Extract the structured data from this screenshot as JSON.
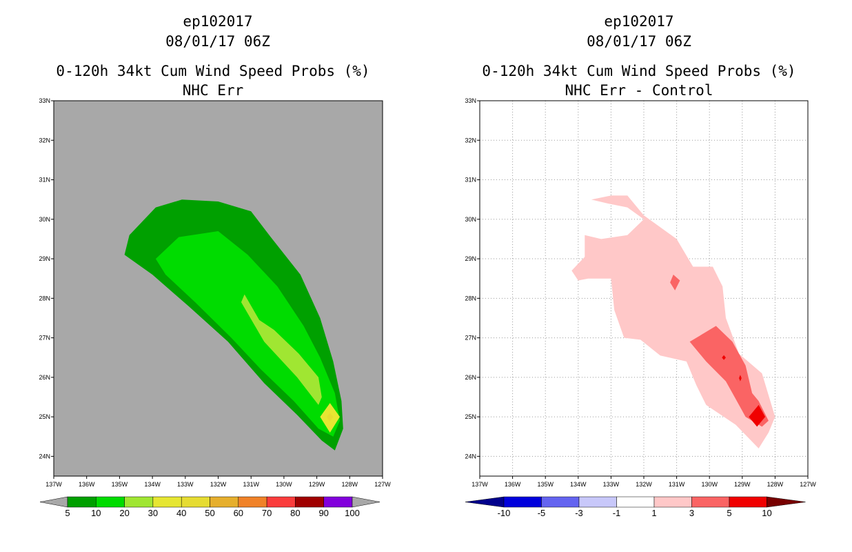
{
  "chart_data": [
    {
      "type": "heatmap",
      "id": "left",
      "storm_id": "ep102017",
      "datetime": "08/01/17 06Z",
      "title": "0-120h 34kt Cum Wind Speed Probs (%)",
      "subtitle": "NHC Err",
      "xlim": [
        -137,
        -127
      ],
      "ylim": [
        23.5,
        33
      ],
      "xticks": [
        "137W",
        "136W",
        "135W",
        "134W",
        "133W",
        "132W",
        "131W",
        "130W",
        "129W",
        "128W",
        "127W"
      ],
      "yticks": [
        "24N",
        "25N",
        "26N",
        "27N",
        "28N",
        "29N",
        "30N",
        "31N",
        "32N",
        "33N"
      ],
      "grid": false,
      "background": "#a8a8a8",
      "colorbar": {
        "labels": [
          "5",
          "10",
          "20",
          "30",
          "40",
          "50",
          "60",
          "70",
          "80",
          "90",
          "100"
        ],
        "colors": [
          "#00a000",
          "#00dc00",
          "#a0e632",
          "#e6e632",
          "#e6dc32",
          "#e6af2d",
          "#f08228",
          "#fa3c3c",
          "#a00000",
          "#8200dc"
        ],
        "end_left": "#a8a8a8",
        "end_right": "#a8a8a8"
      },
      "contours": [
        {
          "level": "5",
          "color": "#00a000",
          "points": [
            [
              -134.7,
              29.6
            ],
            [
              -133.9,
              30.3
            ],
            [
              -133.1,
              30.5
            ],
            [
              -132.0,
              30.45
            ],
            [
              -131.0,
              30.2
            ],
            [
              -130.4,
              29.55
            ],
            [
              -129.5,
              28.6
            ],
            [
              -128.9,
              27.5
            ],
            [
              -128.5,
              26.4
            ],
            [
              -128.25,
              25.4
            ],
            [
              -128.2,
              24.7
            ],
            [
              -128.45,
              24.15
            ],
            [
              -128.85,
              24.4
            ],
            [
              -129.6,
              25.05
            ],
            [
              -130.6,
              25.85
            ],
            [
              -131.7,
              26.9
            ],
            [
              -132.9,
              27.8
            ],
            [
              -134.0,
              28.6
            ],
            [
              -134.85,
              29.1
            ]
          ]
        },
        {
          "level": "10",
          "color": "#00dc00",
          "points": [
            [
              -133.9,
              29.0
            ],
            [
              -133.2,
              29.55
            ],
            [
              -132.0,
              29.7
            ],
            [
              -131.1,
              29.1
            ],
            [
              -130.2,
              28.3
            ],
            [
              -129.4,
              27.3
            ],
            [
              -128.9,
              26.5
            ],
            [
              -128.45,
              25.6
            ],
            [
              -128.3,
              24.9
            ],
            [
              -128.5,
              24.5
            ],
            [
              -128.95,
              24.7
            ],
            [
              -129.7,
              25.4
            ],
            [
              -130.7,
              26.2
            ],
            [
              -131.6,
              27.0
            ],
            [
              -132.7,
              27.9
            ],
            [
              -133.6,
              28.6
            ]
          ]
        },
        {
          "level": "20",
          "color": "#a0e632",
          "points": [
            [
              -131.2,
              28.1
            ],
            [
              -130.75,
              27.45
            ],
            [
              -130.3,
              27.2
            ],
            [
              -129.55,
              26.6
            ],
            [
              -128.95,
              26.0
            ],
            [
              -128.85,
              25.5
            ],
            [
              -128.95,
              25.3
            ],
            [
              -129.6,
              26.0
            ],
            [
              -130.6,
              26.9
            ],
            [
              -131.3,
              27.9
            ]
          ]
        },
        {
          "level": "30",
          "color": "#e6e632",
          "points": [
            [
              -128.6,
              25.35
            ],
            [
              -128.3,
              25.0
            ],
            [
              -128.6,
              24.6
            ],
            [
              -128.9,
              25.0
            ]
          ]
        },
        {
          "level": "40",
          "color": "#e6dc32",
          "points": [
            [
              -128.6,
              25.1
            ],
            [
              -128.5,
              25.0
            ],
            [
              -128.6,
              24.88
            ],
            [
              -128.7,
              25.0
            ]
          ]
        }
      ]
    },
    {
      "type": "heatmap",
      "id": "right",
      "storm_id": "ep102017",
      "datetime": "08/01/17 06Z",
      "title": "0-120h 34kt Cum Wind Speed Probs (%)",
      "subtitle": "NHC Err - Control",
      "xlim": [
        -137,
        -127
      ],
      "ylim": [
        23.5,
        33
      ],
      "xticks": [
        "137W",
        "136W",
        "135W",
        "134W",
        "133W",
        "132W",
        "131W",
        "130W",
        "129W",
        "128W",
        "127W"
      ],
      "yticks": [
        "24N",
        "25N",
        "26N",
        "27N",
        "28N",
        "29N",
        "30N",
        "31N",
        "32N",
        "33N"
      ],
      "grid": true,
      "background": "#ffffff",
      "colorbar": {
        "labels": [
          "-10",
          "-5",
          "-3",
          "-1",
          "1",
          "3",
          "5",
          "10"
        ],
        "colors": [
          "#0000dc",
          "#6464f0",
          "#c8c8fa",
          "#ffffff",
          "#ffc8c8",
          "#fa6464",
          "#f00000"
        ],
        "end_left": "#00008c",
        "end_right": "#780000"
      },
      "contours": [
        {
          "level": "1",
          "color": "#ffc8c8",
          "points": [
            [
              -133.6,
              30.5
            ],
            [
              -133.0,
              30.6
            ],
            [
              -132.5,
              30.6
            ],
            [
              -132.0,
              30.1
            ],
            [
              -131.0,
              29.5
            ],
            [
              -130.5,
              28.8
            ],
            [
              -129.9,
              28.8
            ],
            [
              -129.6,
              28.3
            ],
            [
              -129.5,
              27.5
            ],
            [
              -129.1,
              26.6
            ],
            [
              -128.4,
              26.1
            ],
            [
              -128.0,
              25.0
            ],
            [
              -128.2,
              24.6
            ],
            [
              -128.5,
              24.2
            ],
            [
              -129.2,
              24.8
            ],
            [
              -130.1,
              25.3
            ],
            [
              -130.4,
              25.8
            ],
            [
              -130.7,
              26.4
            ],
            [
              -131.5,
              26.55
            ],
            [
              -132.1,
              26.95
            ],
            [
              -132.6,
              27.0
            ],
            [
              -132.9,
              27.7
            ],
            [
              -133.0,
              28.5
            ],
            [
              -133.7,
              28.5
            ],
            [
              -134.0,
              28.45
            ],
            [
              -134.2,
              28.7
            ],
            [
              -133.8,
              29.05
            ],
            [
              -133.8,
              29.6
            ],
            [
              -133.3,
              29.5
            ],
            [
              -132.5,
              29.6
            ],
            [
              -132.0,
              30.0
            ],
            [
              -132.5,
              30.3
            ],
            [
              -133.1,
              30.4
            ]
          ]
        },
        {
          "level": "3",
          "color": "#fa6464",
          "points": [
            [
              -129.8,
              27.3
            ],
            [
              -129.3,
              26.9
            ],
            [
              -128.9,
              26.3
            ],
            [
              -128.7,
              25.6
            ],
            [
              -128.5,
              25.4
            ],
            [
              -128.2,
              24.9
            ],
            [
              -128.4,
              24.75
            ],
            [
              -128.9,
              25.0
            ],
            [
              -129.2,
              25.45
            ],
            [
              -129.5,
              25.9
            ],
            [
              -130.1,
              26.4
            ],
            [
              -130.6,
              26.9
            ]
          ]
        },
        {
          "level": "3",
          "color": "#fa6464",
          "points": [
            [
              -131.1,
              28.6
            ],
            [
              -130.9,
              28.45
            ],
            [
              -131.05,
              28.2
            ],
            [
              -131.2,
              28.4
            ]
          ]
        },
        {
          "level": "5",
          "color": "#f00000",
          "points": [
            [
              -128.5,
              25.3
            ],
            [
              -128.3,
              25.0
            ],
            [
              -128.55,
              24.75
            ],
            [
              -128.8,
              25.0
            ]
          ]
        },
        {
          "level": "5",
          "color": "#f00000",
          "points": [
            [
              -129.56,
              26.56
            ],
            [
              -129.5,
              26.5
            ],
            [
              -129.56,
              26.44
            ],
            [
              -129.62,
              26.5
            ]
          ]
        },
        {
          "level": "5",
          "color": "#f00000",
          "points": [
            [
              -129.06,
              26.06
            ],
            [
              -129.02,
              25.98
            ],
            [
              -129.06,
              25.9
            ],
            [
              -129.1,
              25.98
            ]
          ]
        }
      ]
    }
  ]
}
